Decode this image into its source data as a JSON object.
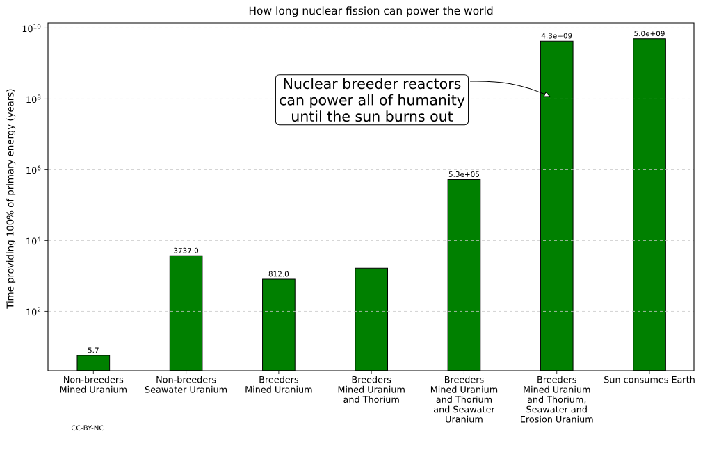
{
  "chart_data": {
    "type": "bar",
    "title": "How long nuclear fission can power the world",
    "ylabel": "Time providing 100% of primary energy (years)",
    "categories": [
      "Non-breeders\nMined Uranium",
      "Non-breeders\nSeawater Uranium",
      "Breeders\nMined Uranium",
      "Breeders\nMined Uranium\nand Thorium",
      "Breeders\nMined Uranium\nand Thorium\nand Seawater\nUranium",
      "Breeders\nMined Uranium\nand Thorium,\nSeawater and\nErosion Uranium",
      "Sun consumes Earth"
    ],
    "values": [
      5.7,
      3737.0,
      812.0,
      1650,
      530000,
      4300000000,
      5000000000
    ],
    "value_labels": [
      "5.7",
      "3737.0",
      "812.0",
      null,
      "5.3e+05",
      "4.3e+09",
      "5.0e+09"
    ],
    "color": "#008000",
    "log": true,
    "ylim": [
      2.1,
      14000000000
    ],
    "yticks": [
      {
        "value": 100,
        "label": "10$^{2}$"
      },
      {
        "value": 10000,
        "label": "10$^{4}$"
      },
      {
        "value": 1000000,
        "label": "10$^{6}$"
      },
      {
        "value": 100000000,
        "label": "10$^{8}$"
      },
      {
        "value": 10000000000,
        "label": "10$^{10}$"
      }
    ],
    "grid": "y",
    "annotations": [
      "Nuclear breeder reactors\ncan power all of humanity\nuntil the sun burns out",
      "CC-BY-NC"
    ]
  }
}
